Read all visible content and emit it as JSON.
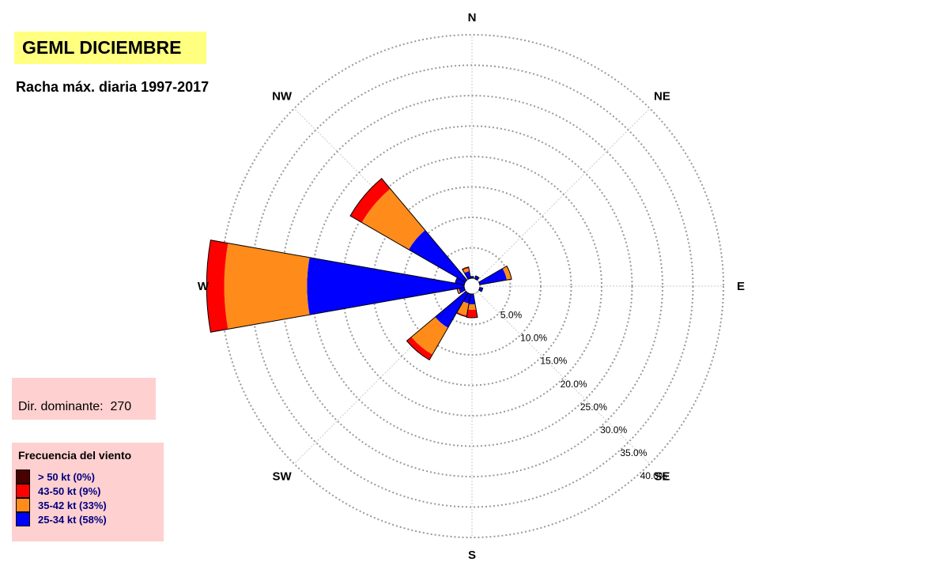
{
  "title": "GEML DICIEMBRE",
  "subtitle": "Racha máx. diaria 1997-2017",
  "dominant": {
    "label": "Dir. dominante:",
    "value": "270"
  },
  "legend": {
    "title": "Frecuencia del viento",
    "items": [
      {
        "label": "> 50 kt (0%)",
        "color": "#4a0000"
      },
      {
        "label": "43-50 kt (9%)",
        "color": "#ff0000"
      },
      {
        "label": "35-42 kt (33%)",
        "color": "#ff8c1a"
      },
      {
        "label": "25-34 kt (58%)",
        "color": "#0000ff"
      }
    ]
  },
  "chart_data": {
    "type": "polar-bar",
    "directions": [
      {
        "label": "N",
        "deg": 0
      },
      {
        "label": "NE",
        "deg": 45
      },
      {
        "label": "E",
        "deg": 90
      },
      {
        "label": "SE",
        "deg": 135
      },
      {
        "label": "S",
        "deg": 180
      },
      {
        "label": "SW",
        "deg": 225
      },
      {
        "label": "W",
        "deg": 270
      },
      {
        "label": "NW",
        "deg": 315
      }
    ],
    "radial_ticks": [
      "5.0%",
      "10.0%",
      "15.0%",
      "20.0%",
      "25.0%",
      "30.0%",
      "35.0%",
      "40.0%"
    ],
    "radial_max": 40,
    "sector_width_deg": 20,
    "series_colors": [
      "#0000ff",
      "#ff8c1a",
      "#ff0000",
      "#4a0000"
    ],
    "sectors": [
      {
        "dir": 0,
        "values": [
          0.3,
          0,
          0,
          0
        ]
      },
      {
        "dir": 30,
        "values": [
          0.5,
          0,
          0,
          0
        ]
      },
      {
        "dir": 70,
        "values": [
          4.5,
          0.8,
          0,
          0
        ]
      },
      {
        "dir": 110,
        "values": [
          0.5,
          0,
          0,
          0
        ]
      },
      {
        "dir": 180,
        "values": [
          1.7,
          0.9,
          1.3,
          0
        ]
      },
      {
        "dir": 200,
        "values": [
          1.6,
          2.0,
          0.2,
          0
        ]
      },
      {
        "dir": 220,
        "values": [
          6.6,
          5.1,
          1.0,
          0
        ]
      },
      {
        "dir": 250,
        "values": [
          0.9,
          0.3,
          0,
          0
        ]
      },
      {
        "dir": 270,
        "values": [
          25.8,
          13.6,
          2.9,
          0
        ]
      },
      {
        "dir": 290,
        "values": [
          1.5,
          0,
          0,
          0
        ]
      },
      {
        "dir": 310,
        "values": [
          10.7,
          8.9,
          2.2,
          0
        ]
      },
      {
        "dir": 340,
        "values": [
          1.2,
          0.5,
          0.2,
          0
        ]
      }
    ]
  }
}
